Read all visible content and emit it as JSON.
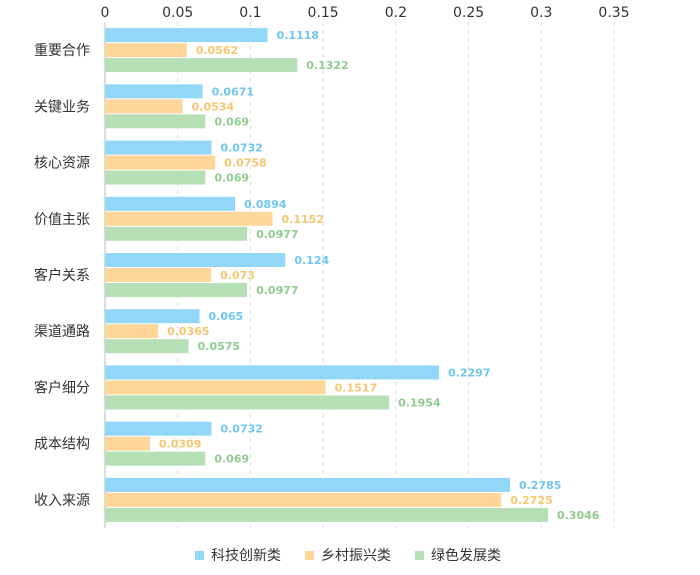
{
  "chart_data": {
    "type": "bar",
    "orientation": "horizontal",
    "categories": [
      "重要合作",
      "关键业务",
      "核心资源",
      "价值主张",
      "客户关系",
      "渠道通路",
      "客户细分",
      "成本结构",
      "收入来源"
    ],
    "series": [
      {
        "name": "科技创新类",
        "color": "#92d7f7",
        "label_color": "#6fc6f2",
        "values": [
          0.1118,
          0.0671,
          0.0732,
          0.0894,
          0.124,
          0.065,
          0.2297,
          0.0732,
          0.2785
        ]
      },
      {
        "name": "乡村振兴类",
        "color": "#ffd699",
        "label_color": "#f8c66f",
        "values": [
          0.0562,
          0.0534,
          0.0758,
          0.1152,
          0.073,
          0.0365,
          0.1517,
          0.0309,
          0.2725
        ]
      },
      {
        "name": "绿色发展类",
        "color": "#b5dfb5",
        "label_color": "#8fcc8f",
        "values": [
          0.1322,
          0.069,
          0.069,
          0.0977,
          0.0977,
          0.0575,
          0.1954,
          0.069,
          0.3046
        ]
      }
    ],
    "x_ticks": [
      "0",
      "0.05",
      "0.1",
      "0.15",
      "0.2",
      "0.25",
      "0.3",
      "0.35"
    ],
    "xlim": [
      0,
      0.35
    ],
    "x_axis_position": "top",
    "grid": "vertical dashed",
    "legend_position": "bottom-center"
  }
}
